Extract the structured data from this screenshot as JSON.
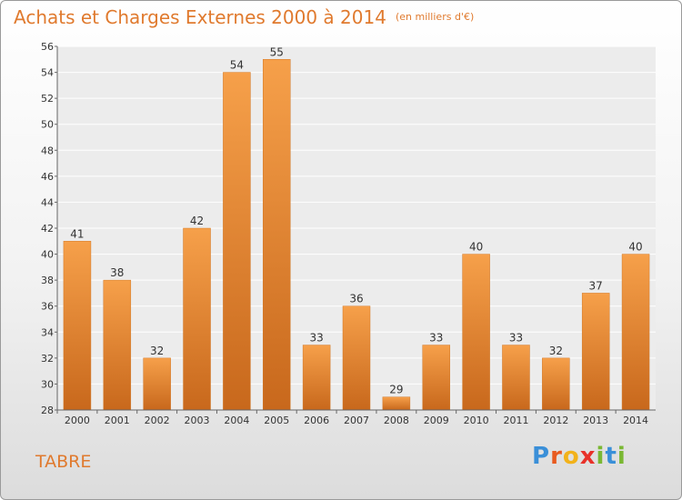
{
  "title": "Achats et Charges Externes 2000 à 2014",
  "title_unit": "(en milliers d'€)",
  "commune": "TABRE",
  "logo": {
    "letters": [
      "P",
      "r",
      "o",
      "x",
      "i",
      "t",
      "i"
    ],
    "colors": [
      "#3a8fd8",
      "#e85a1f",
      "#f2b21a",
      "#e8322a",
      "#7ab833",
      "#3a8fd8",
      "#7ab833"
    ]
  },
  "colors": {
    "accent": "#e07a2e",
    "bar_light": "#f6a04a",
    "bar_dark": "#c8681c"
  },
  "chart_data": {
    "type": "bar",
    "categories": [
      "2000",
      "2001",
      "2002",
      "2003",
      "2004",
      "2005",
      "2006",
      "2007",
      "2008",
      "2009",
      "2010",
      "2011",
      "2012",
      "2013",
      "2014"
    ],
    "values": [
      41,
      38,
      32,
      42,
      54,
      55,
      33,
      36,
      29,
      33,
      40,
      33,
      32,
      37,
      40
    ],
    "value_labels": [
      "41",
      "38",
      "32",
      "42",
      "54",
      "55",
      "33",
      "36",
      "29",
      "33",
      "40",
      "33",
      "32",
      "37",
      "40"
    ],
    "ylim": [
      28,
      56
    ],
    "yticks": [
      "28",
      "30",
      "32",
      "34",
      "36",
      "38",
      "40",
      "42",
      "44",
      "46",
      "48",
      "50",
      "52",
      "54",
      "56"
    ],
    "grid": true
  }
}
